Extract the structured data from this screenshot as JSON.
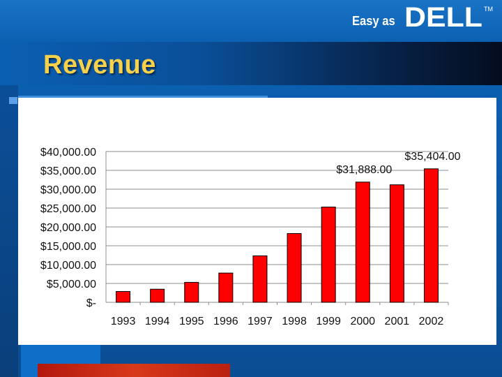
{
  "slide": {
    "title": "Revenue",
    "tagline": "Easy as",
    "logo_text": "DELL",
    "trademark": "TM"
  },
  "colors": {
    "bar": "#ff0000",
    "bar_stroke": "#000000",
    "title": "#f7d14a",
    "background": "#0b5ba8"
  },
  "chart_data": {
    "type": "bar",
    "title": "",
    "xlabel": "",
    "ylabel": "",
    "categories": [
      "1993",
      "1994",
      "1995",
      "1996",
      "1997",
      "1998",
      "1999",
      "2000",
      "2001",
      "2002"
    ],
    "values": [
      2873,
      3475,
      5296,
      7759,
      12327,
      18243,
      25265,
      31888,
      31168,
      35404
    ],
    "data_labels": [
      {
        "index": 7,
        "text": "$31,888.00"
      },
      {
        "index": 9,
        "text": "$35,404.00"
      }
    ],
    "ylim": [
      0,
      40000
    ],
    "y_ticks": [
      {
        "value": 40000,
        "label": "$40,000.00"
      },
      {
        "value": 35000,
        "label": "$35,000.00"
      },
      {
        "value": 30000,
        "label": "$30,000.00"
      },
      {
        "value": 25000,
        "label": "$25,000.00"
      },
      {
        "value": 20000,
        "label": "$20,000.00"
      },
      {
        "value": 15000,
        "label": "$15,000.00"
      },
      {
        "value": 10000,
        "label": "$10,000.00"
      },
      {
        "value": 5000,
        "label": "$5,000.00"
      },
      {
        "value": 0,
        "label": "$-"
      }
    ],
    "grid": true,
    "legend": "none"
  }
}
